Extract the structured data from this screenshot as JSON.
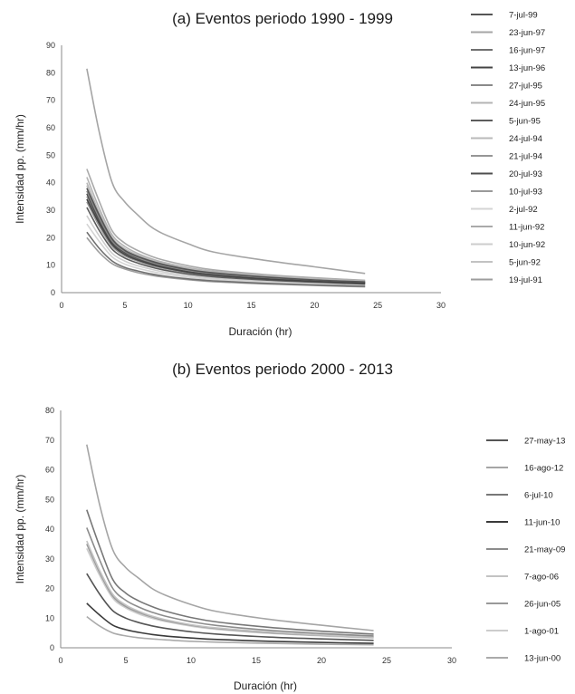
{
  "chart_data": [
    {
      "type": "line",
      "title": "(a) Eventos periodo 1990 - 1999",
      "xlabel": "Duración (hr)",
      "ylabel": "Intensidad pp. (mm/hr)",
      "xlim": [
        0,
        30
      ],
      "ylim": [
        0,
        90
      ],
      "xticks": [
        0,
        5,
        10,
        15,
        20,
        25,
        30
      ],
      "yticks": [
        0,
        10,
        20,
        30,
        40,
        50,
        60,
        70,
        80,
        90
      ],
      "grid": false,
      "legend": "right",
      "x": [
        2,
        3,
        4,
        5,
        6,
        7,
        8,
        10,
        12,
        16,
        20,
        24
      ],
      "series": [
        {
          "name": "7-jul-99",
          "color": "#555555",
          "values": [
            38,
            28,
            19.5,
            15.4,
            13.2,
            11.6,
            10.3,
            8.4,
            7.2,
            5.7,
            4.6,
            3.9
          ]
        },
        {
          "name": "23-jun-97",
          "color": "#a5a5a5",
          "values": [
            81.5,
            58,
            40,
            33,
            28.4,
            24.2,
            21.5,
            17.8,
            14.8,
            11.8,
            9.4,
            7.0
          ]
        },
        {
          "name": "16-jun-97",
          "color": "#707070",
          "values": [
            22,
            16,
            11.5,
            9.2,
            7.9,
            6.9,
            6.1,
            5.0,
            4.3,
            3.4,
            2.8,
            2.3
          ]
        },
        {
          "name": "13-jun-96",
          "color": "#444444",
          "values": [
            34,
            25,
            17.5,
            13.9,
            11.9,
            10.4,
            9.2,
            7.5,
            6.4,
            5.0,
            4.1,
            3.4
          ]
        },
        {
          "name": "27-jul-95",
          "color": "#8a8a8a",
          "values": [
            37,
            27,
            18.8,
            15,
            12.8,
            11.2,
            9.9,
            8.1,
            6.9,
            5.5,
            4.5,
            3.7
          ]
        },
        {
          "name": "24-jun-95",
          "color": "#b4b4b4",
          "values": [
            42,
            30.5,
            21,
            16.8,
            14.3,
            12.5,
            11.1,
            9.1,
            7.8,
            6.2,
            5.1,
            4.2
          ]
        },
        {
          "name": "5-jun-95",
          "color": "#5c5c5c",
          "values": [
            31,
            22.5,
            15.8,
            12.6,
            10.8,
            9.4,
            8.3,
            6.8,
            5.8,
            4.6,
            3.8,
            3.1
          ]
        },
        {
          "name": "24-jul-94",
          "color": "#b9b9b9",
          "values": [
            40,
            29,
            20,
            16,
            13.7,
            12.0,
            10.6,
            8.7,
            7.4,
            5.9,
            4.8,
            4.0
          ]
        },
        {
          "name": "21-jul-94",
          "color": "#969696",
          "values": [
            33,
            24,
            16.8,
            13.4,
            11.5,
            10.0,
            8.9,
            7.3,
            6.2,
            4.9,
            4.0,
            3.3
          ]
        },
        {
          "name": "20-jul-93",
          "color": "#4e4e4e",
          "values": [
            36,
            26,
            18.2,
            14.6,
            12.5,
            10.9,
            9.6,
            7.9,
            6.7,
            5.3,
            4.4,
            3.6
          ]
        },
        {
          "name": "10-jul-93",
          "color": "#9a9a9a",
          "values": [
            35,
            25.5,
            17.8,
            14.2,
            12.1,
            10.6,
            9.4,
            7.7,
            6.6,
            5.2,
            4.3,
            3.5
          ]
        },
        {
          "name": "2-jul-92",
          "color": "#d4d4d4",
          "values": [
            25,
            18.5,
            13,
            10.4,
            8.9,
            7.8,
            6.9,
            5.6,
            4.8,
            3.8,
            3.1,
            2.5
          ]
        },
        {
          "name": "11-jun-92",
          "color": "#aaaaaa",
          "values": [
            45,
            33,
            22.5,
            18,
            15.4,
            13.4,
            11.9,
            9.8,
            8.3,
            6.6,
            5.4,
            4.5
          ]
        },
        {
          "name": "10-jun-92",
          "color": "#cdcdcd",
          "values": [
            28,
            20.5,
            14.3,
            11.5,
            9.8,
            8.6,
            7.6,
            6.2,
            5.3,
            4.2,
            3.4,
            2.8
          ]
        },
        {
          "name": "5-jun-92",
          "color": "#c2c2c2",
          "values": [
            39,
            28.5,
            19.8,
            15.8,
            13.5,
            11.8,
            10.4,
            8.5,
            7.3,
            5.8,
            4.7,
            3.9
          ]
        },
        {
          "name": "19-jul-91",
          "color": "#9d9d9d",
          "values": [
            20,
            14.5,
            10.5,
            8.6,
            7.3,
            6.4,
            5.7,
            4.7,
            4.0,
            3.2,
            2.6,
            2.1
          ]
        }
      ]
    },
    {
      "type": "line",
      "title": "(b) Eventos periodo 2000 - 2013",
      "xlabel": "Duración (hr)",
      "ylabel": "Intensidad pp. (mm/hr)",
      "xlim": [
        0,
        30
      ],
      "ylim": [
        0,
        80
      ],
      "xticks": [
        0,
        5,
        10,
        15,
        20,
        25,
        30
      ],
      "yticks": [
        0,
        10,
        20,
        30,
        40,
        50,
        60,
        70,
        80
      ],
      "grid": false,
      "legend": "right",
      "x": [
        2,
        3,
        4,
        5,
        6,
        7,
        8,
        10,
        12,
        16,
        20,
        24
      ],
      "series": [
        {
          "name": "27-may-13",
          "color": "#555555",
          "values": [
            25,
            18,
            12.5,
            10,
            8.5,
            7.4,
            6.6,
            5.4,
            4.6,
            3.6,
            3.0,
            2.5
          ]
        },
        {
          "name": "16-ago-12",
          "color": "#a5a5a5",
          "values": [
            68.5,
            48,
            33,
            27,
            23.4,
            20.0,
            17.8,
            14.6,
            12.2,
            9.6,
            7.6,
            5.8
          ]
        },
        {
          "name": "6-jul-10",
          "color": "#777777",
          "values": [
            46.5,
            34,
            23,
            18.4,
            15.8,
            13.9,
            12.4,
            10.2,
            8.7,
            6.9,
            5.6,
            4.6
          ]
        },
        {
          "name": "11-jun-10",
          "color": "#3a3a3a",
          "values": [
            15,
            11,
            7.6,
            6.1,
            5.2,
            4.5,
            4.0,
            3.3,
            2.8,
            2.2,
            1.8,
            1.5
          ]
        },
        {
          "name": "21-may-09",
          "color": "#8c8c8c",
          "values": [
            40.5,
            29.5,
            20,
            16,
            13.7,
            12.0,
            10.7,
            8.8,
            7.5,
            5.9,
            4.8,
            4.0
          ]
        },
        {
          "name": "7-ago-06",
          "color": "#c3c3c3",
          "values": [
            36,
            26,
            18,
            14.4,
            12.3,
            10.7,
            9.5,
            7.8,
            6.7,
            5.3,
            4.3,
            3.6
          ]
        },
        {
          "name": "26-jun-05",
          "color": "#999999",
          "values": [
            35,
            25.3,
            17.4,
            13.9,
            11.9,
            10.4,
            9.2,
            7.6,
            6.5,
            5.1,
            4.2,
            3.5
          ]
        },
        {
          "name": "1-ago-01",
          "color": "#cccccc",
          "values": [
            33.5,
            24.3,
            16.7,
            13.4,
            11.4,
            10.0,
            8.9,
            7.3,
            6.2,
            4.9,
            4.0,
            3.3
          ]
        },
        {
          "name": "13-jun-00",
          "color": "#aaaaaa",
          "values": [
            10.5,
            7.3,
            5,
            4,
            3.4,
            3.0,
            2.7,
            2.2,
            1.9,
            1.5,
            1.2,
            1.0
          ]
        }
      ]
    }
  ]
}
